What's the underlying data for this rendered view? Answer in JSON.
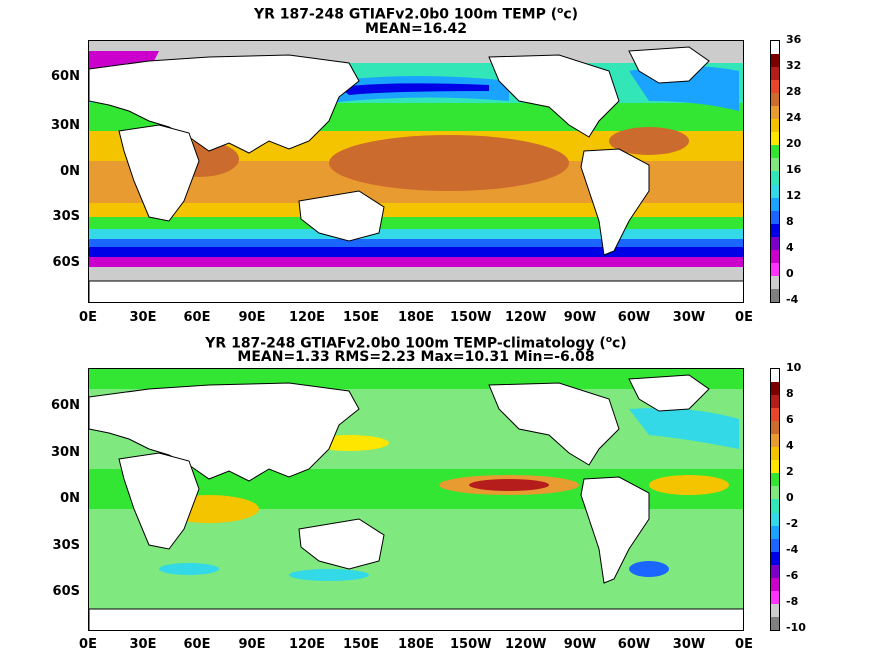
{
  "top": {
    "title_pre": "YR 187-248 GTIAFv2.0b0 100m TEMP (",
    "title_sup": "o",
    "title_post": "c)",
    "subtitle": "MEAN=16.42",
    "colorbar_labels": [
      "36",
      "32",
      "28",
      "24",
      "20",
      "16",
      "12",
      "8",
      "4",
      "0",
      "-4"
    ],
    "colorbar_colors": [
      "#ffffff",
      "#7a0000",
      "#b51c1c",
      "#e8452a",
      "#cc6b2e",
      "#e89b30",
      "#f5c400",
      "#ffe600",
      "#33e633",
      "#7fe87f",
      "#33e6b8",
      "#33d9e6",
      "#1aa3ff",
      "#1a66ff",
      "#0000e6",
      "#7a00c8",
      "#cc00cc",
      "#ff33ff",
      "#cccccc",
      "#808080"
    ]
  },
  "bottom": {
    "title_pre": "YR 187-248 GTIAFv2.0b0 100m TEMP-climatology (",
    "title_sup": "o",
    "title_post": "c)",
    "subtitle": "MEAN=1.33   RMS=2.23   Max=10.31   Min=-6.08",
    "colorbar_labels": [
      "10",
      "8",
      "6",
      "4",
      "2",
      "0",
      "-2",
      "-4",
      "-6",
      "-8",
      "-10"
    ],
    "colorbar_colors": [
      "#ffffff",
      "#7a0000",
      "#b51c1c",
      "#e8452a",
      "#cc6b2e",
      "#e89b30",
      "#f5c400",
      "#ffe600",
      "#33e633",
      "#7fe87f",
      "#33e6b8",
      "#33d9e6",
      "#1aa3ff",
      "#1a66ff",
      "#0000e6",
      "#7a00c8",
      "#cc00cc",
      "#ff33ff",
      "#cccccc",
      "#808080"
    ]
  },
  "lat_labels": [
    "60N",
    "30N",
    "0N",
    "30S",
    "60S"
  ],
  "lon_labels": [
    "0E",
    "30E",
    "60E",
    "90E",
    "120E",
    "150E",
    "180E",
    "150W",
    "120W",
    "90W",
    "60W",
    "30W",
    "0E"
  ]
}
